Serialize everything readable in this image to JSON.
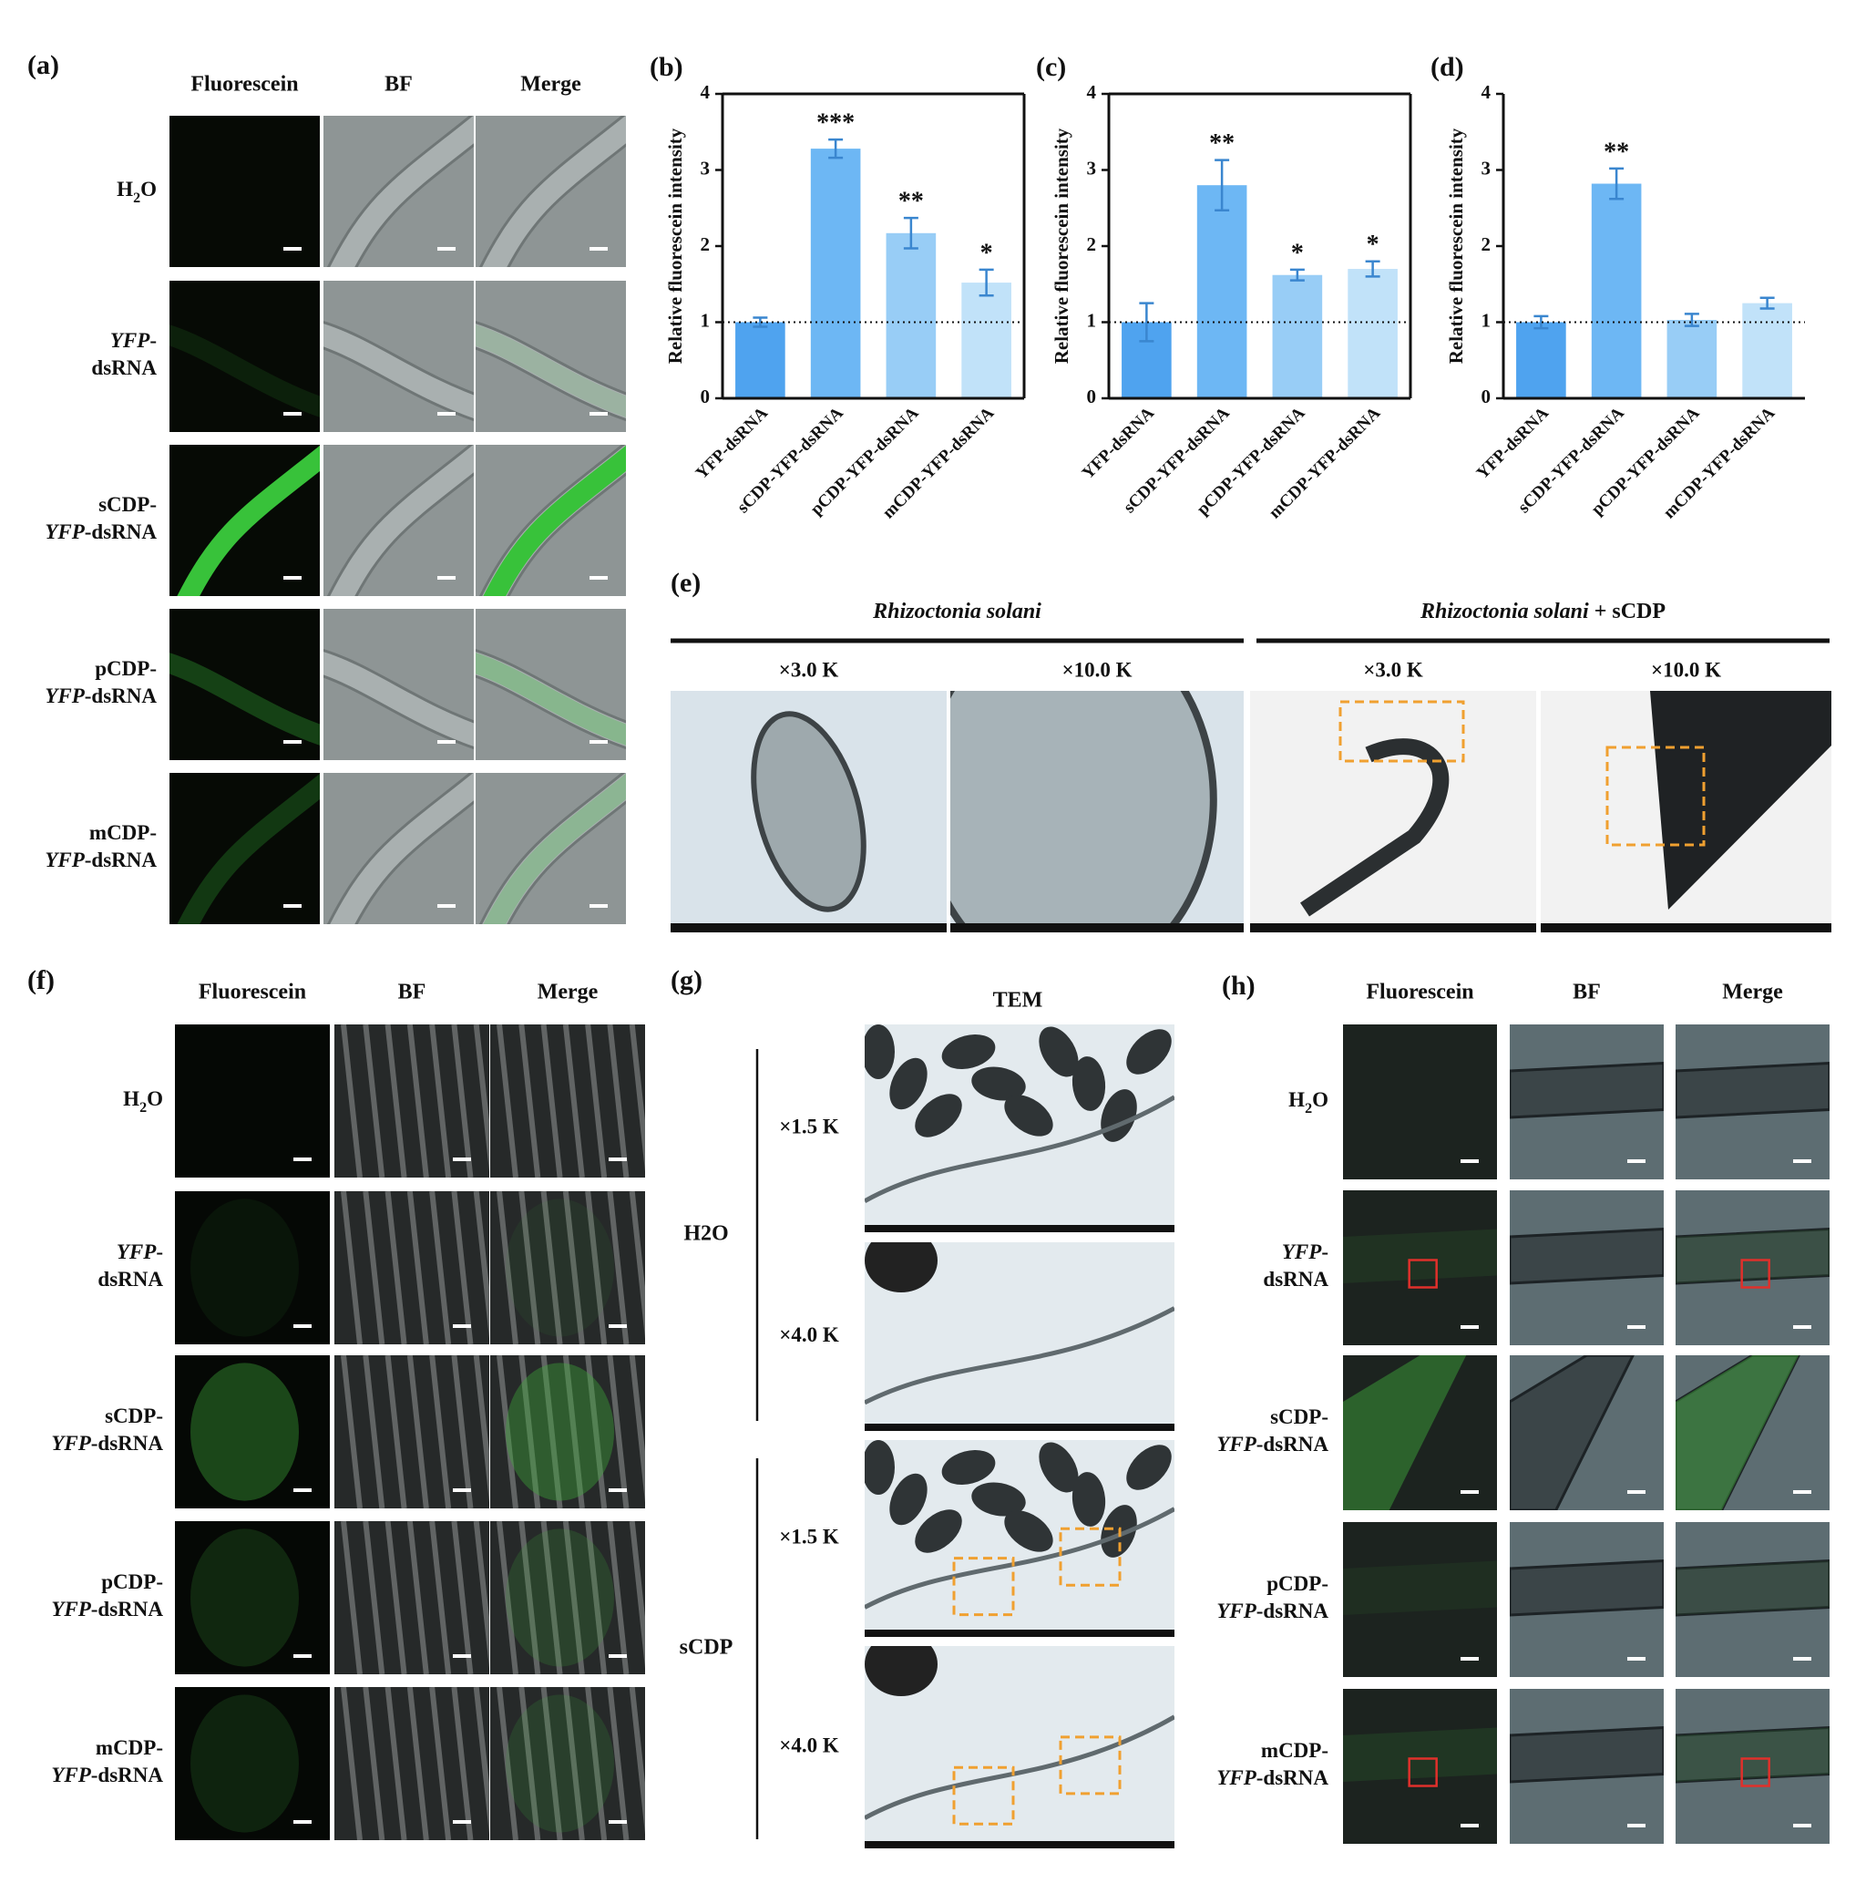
{
  "panel_a": {
    "label": "(a)",
    "columns": [
      "Fluorescein",
      "BF",
      "Merge"
    ],
    "rows": [
      [
        [
          {
            "text": "H"
          },
          {
            "text": "2",
            "sub": true
          },
          {
            "text": "O"
          }
        ]
      ],
      [
        [
          {
            "text": "YFP",
            "italic": true
          },
          {
            "text": "-"
          }
        ],
        [
          {
            "text": "dsRNA"
          }
        ]
      ],
      [
        [
          {
            "text": "sCDP-"
          }
        ],
        [
          {
            "text": "YFP",
            "italic": true
          },
          {
            "text": "-dsRNA"
          }
        ]
      ],
      [
        [
          {
            "text": "pCDP-"
          }
        ],
        [
          {
            "text": "YFP",
            "italic": true
          },
          {
            "text": "-dsRNA"
          }
        ]
      ],
      [
        [
          {
            "text": "mCDP-"
          }
        ],
        [
          {
            "text": "YFP",
            "italic": true
          },
          {
            "text": "-dsRNA"
          }
        ]
      ]
    ]
  },
  "chart_data": [
    {
      "type": "bar",
      "panel_label": "(b)",
      "y_label": "Relative fluorescein intensity",
      "categories": [
        "YFP-dsRNA",
        "sCDP-YFP-dsRNA",
        "pCDP-YFP-dsRNA",
        "mCDP-YFP-dsRNA"
      ],
      "values": [
        1.0,
        3.28,
        2.17,
        1.52
      ],
      "errors": [
        0.06,
        0.12,
        0.2,
        0.17
      ],
      "annotations": [
        null,
        "***",
        "**",
        "*"
      ],
      "colors": [
        "#4fa3ef",
        "#6db7f4",
        "#98cdf6",
        "#c1e2f9"
      ],
      "ylim": [
        0,
        4
      ],
      "yticks": [
        0,
        1,
        2,
        3,
        4
      ],
      "reference_line": 1,
      "frame": "box"
    },
    {
      "type": "bar",
      "panel_label": "(c)",
      "y_label": "Relative fluorescein intensity",
      "categories": [
        "YFP-dsRNA",
        "sCDP-YFP-dsRNA",
        "pCDP-YFP-dsRNA",
        "mCDP-YFP-dsRNA"
      ],
      "values": [
        1.0,
        2.8,
        1.62,
        1.7
      ],
      "errors": [
        0.25,
        0.33,
        0.07,
        0.1
      ],
      "annotations": [
        null,
        "**",
        "*",
        "*"
      ],
      "colors": [
        "#4fa3ef",
        "#6db7f4",
        "#98cdf6",
        "#c1e2f9"
      ],
      "ylim": [
        0,
        4
      ],
      "yticks": [
        0,
        1,
        2,
        3,
        4
      ],
      "reference_line": 1,
      "frame": "box"
    },
    {
      "type": "bar",
      "panel_label": "(d)",
      "y_label": "Relative fluorescein intensity",
      "categories": [
        "YFP-dsRNA",
        "sCDP-YFP-dsRNA",
        "pCDP-YFP-dsRNA",
        "mCDP-YFP-dsRNA"
      ],
      "values": [
        1.0,
        2.82,
        1.03,
        1.25
      ],
      "errors": [
        0.08,
        0.2,
        0.08,
        0.07
      ],
      "annotations": [
        null,
        "**",
        null,
        null
      ],
      "colors": [
        "#4fa3ef",
        "#6db7f4",
        "#98cdf6",
        "#c1e2f9"
      ],
      "ylim": [
        0,
        4
      ],
      "yticks": [
        0,
        1,
        2,
        3,
        4
      ],
      "reference_line": 1,
      "frame": "axes"
    }
  ],
  "panel_e": {
    "label": "(e)",
    "groups": [
      {
        "title": [
          {
            "text": "Rhizoctonia solani",
            "italic": true
          }
        ],
        "magnifications": [
          "×3.0 K",
          "×10.0 K"
        ]
      },
      {
        "title": [
          {
            "text": "Rhizoctonia solani",
            "italic": true
          },
          {
            "text": " + sCDP"
          }
        ],
        "magnifications": [
          "×3.0 K",
          "×10.0 K"
        ]
      }
    ]
  },
  "panel_f": {
    "label": "(f)",
    "columns": [
      "Fluorescein",
      "BF",
      "Merge"
    ],
    "rows": [
      [
        [
          {
            "text": "H"
          },
          {
            "text": "2",
            "sub": true
          },
          {
            "text": "O"
          }
        ]
      ],
      [
        [
          {
            "text": "YFP",
            "italic": true
          },
          {
            "text": "-"
          }
        ],
        [
          {
            "text": "dsRNA"
          }
        ]
      ],
      [
        [
          {
            "text": "sCDP-"
          }
        ],
        [
          {
            "text": "YFP",
            "italic": true
          },
          {
            "text": "-dsRNA"
          }
        ]
      ],
      [
        [
          {
            "text": "pCDP-"
          }
        ],
        [
          {
            "text": "YFP",
            "italic": true
          },
          {
            "text": "-dsRNA"
          }
        ]
      ],
      [
        [
          {
            "text": "mCDP-"
          }
        ],
        [
          {
            "text": "YFP",
            "italic": true
          },
          {
            "text": "-dsRNA"
          }
        ]
      ]
    ]
  },
  "panel_g": {
    "label": "(g)",
    "title": "TEM",
    "groups": [
      {
        "name": "H2O",
        "magnifications": [
          "×1.5 K",
          "×4.0 K"
        ]
      },
      {
        "name": "sCDP",
        "magnifications": [
          "×1.5 K",
          "×4.0 K"
        ]
      }
    ]
  },
  "panel_h": {
    "label": "(h)",
    "columns": [
      "Fluorescein",
      "BF",
      "Merge"
    ],
    "rows": [
      [
        [
          {
            "text": "H"
          },
          {
            "text": "2",
            "sub": true
          },
          {
            "text": "O"
          }
        ]
      ],
      [
        [
          {
            "text": "YFP",
            "italic": true
          },
          {
            "text": "-"
          }
        ],
        [
          {
            "text": "dsRNA"
          }
        ]
      ],
      [
        [
          {
            "text": "sCDP-"
          }
        ],
        [
          {
            "text": "YFP",
            "italic": true
          },
          {
            "text": "-dsRNA"
          }
        ]
      ],
      [
        [
          {
            "text": "pCDP-"
          }
        ],
        [
          {
            "text": "YFP",
            "italic": true
          },
          {
            "text": "-dsRNA"
          }
        ]
      ],
      [
        [
          {
            "text": "mCDP-"
          }
        ],
        [
          {
            "text": "YFP",
            "italic": true
          },
          {
            "text": "-dsRNA"
          }
        ]
      ]
    ]
  }
}
